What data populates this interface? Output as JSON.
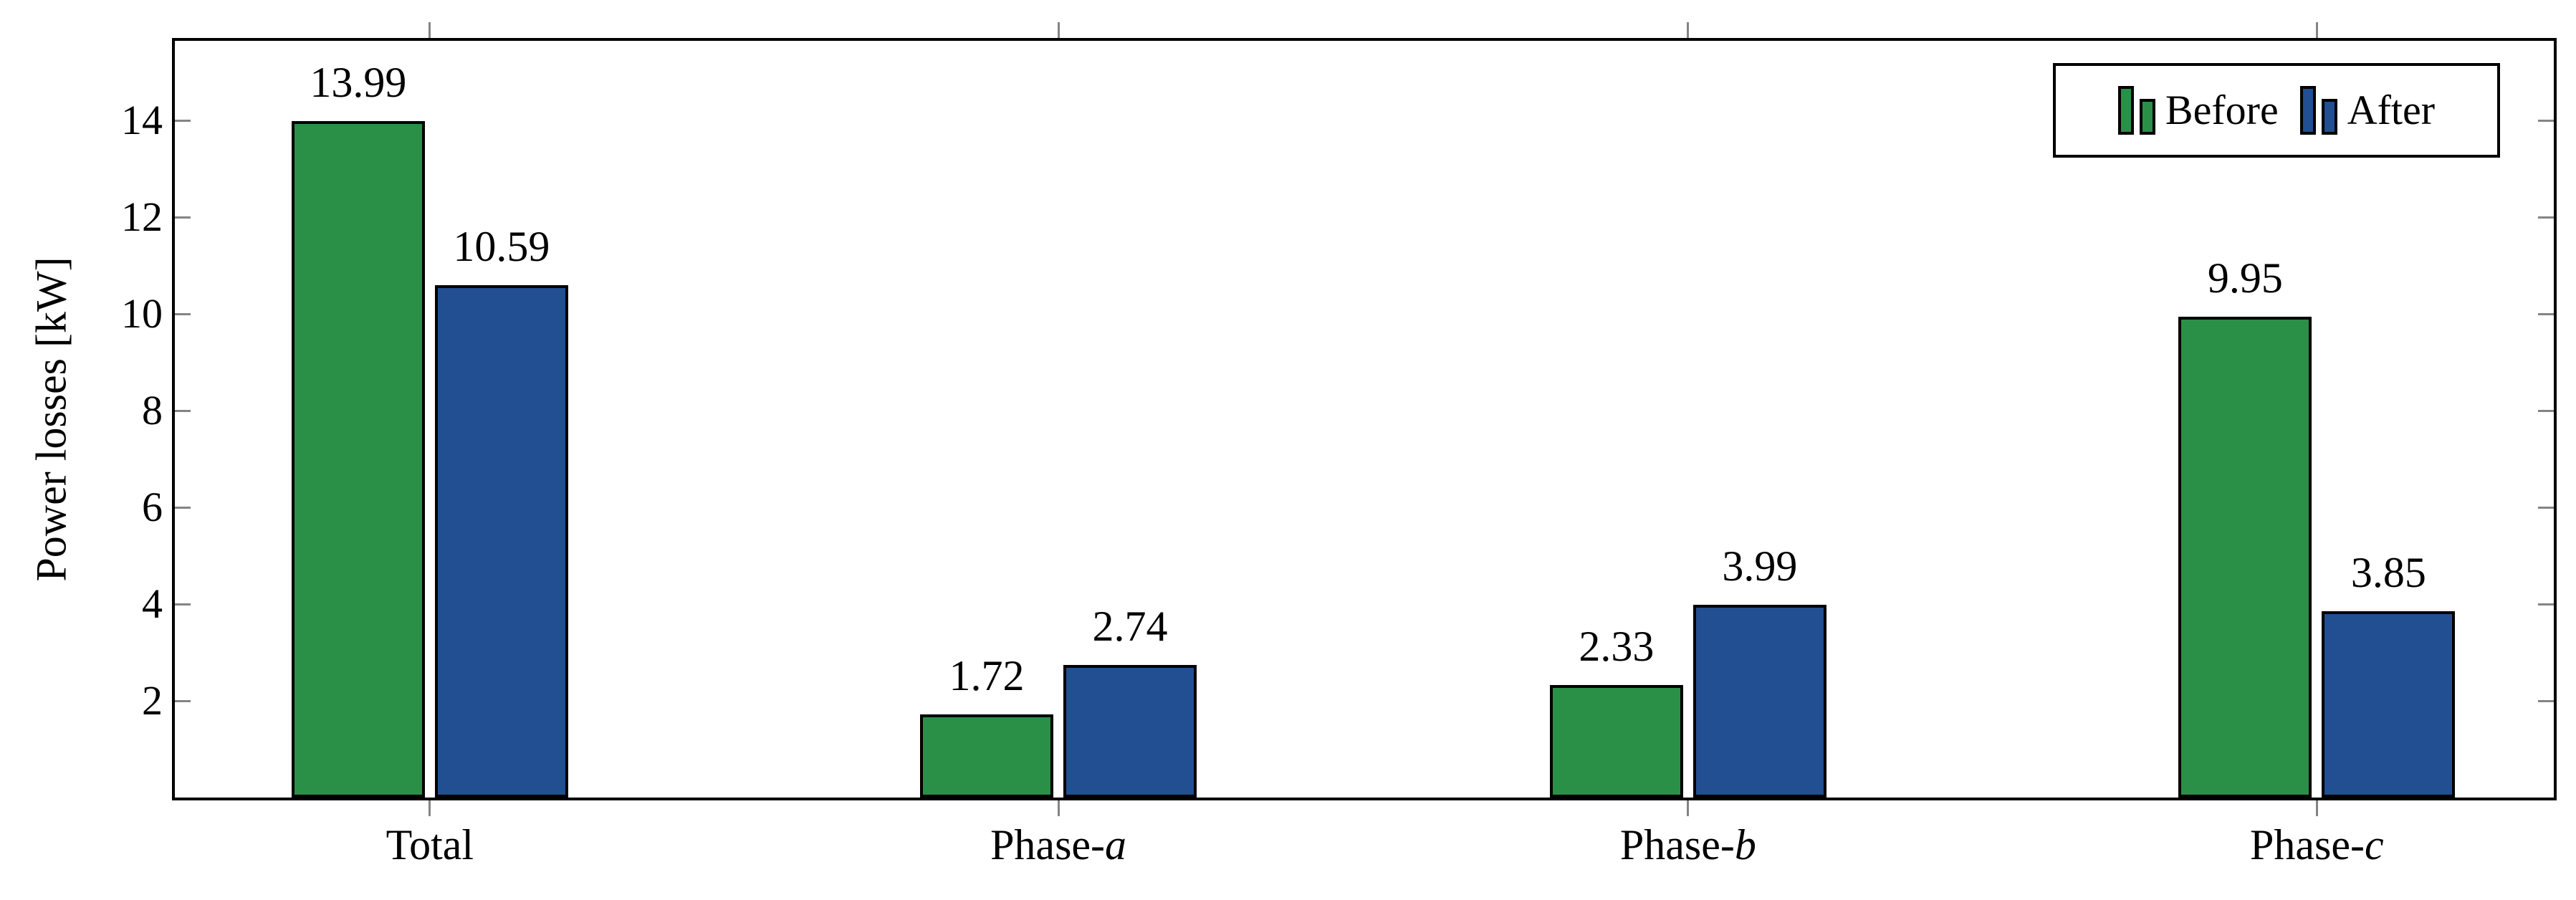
{
  "figure": {
    "background": "#ffffff",
    "axis_color": "#000000",
    "tick_color": "#848484"
  },
  "chart_data": {
    "type": "bar",
    "title": "",
    "xlabel": "",
    "ylabel": "Power losses [kW]",
    "categories": [
      "Total",
      "Phase-a",
      "Phase-b",
      "Phase-c"
    ],
    "category_display": [
      {
        "prefix": "Total",
        "italic": ""
      },
      {
        "prefix": "Phase-",
        "italic": "a"
      },
      {
        "prefix": "Phase-",
        "italic": "b"
      },
      {
        "prefix": "Phase-",
        "italic": "c"
      }
    ],
    "series": [
      {
        "name": "Before",
        "color": "#2A9048",
        "values": [
          13.99,
          1.72,
          2.33,
          9.95
        ]
      },
      {
        "name": "After",
        "color": "#224F91",
        "values": [
          10.59,
          2.74,
          3.99,
          3.85
        ]
      }
    ],
    "value_labels_shown": true,
    "value_label_format": "2dp",
    "ylim": [
      0,
      15.65
    ],
    "yticks": [
      2,
      4,
      6,
      8,
      10,
      12,
      14
    ],
    "grid": false,
    "legend": {
      "position": "top-right",
      "labels": [
        "Before",
        "After"
      ]
    }
  }
}
